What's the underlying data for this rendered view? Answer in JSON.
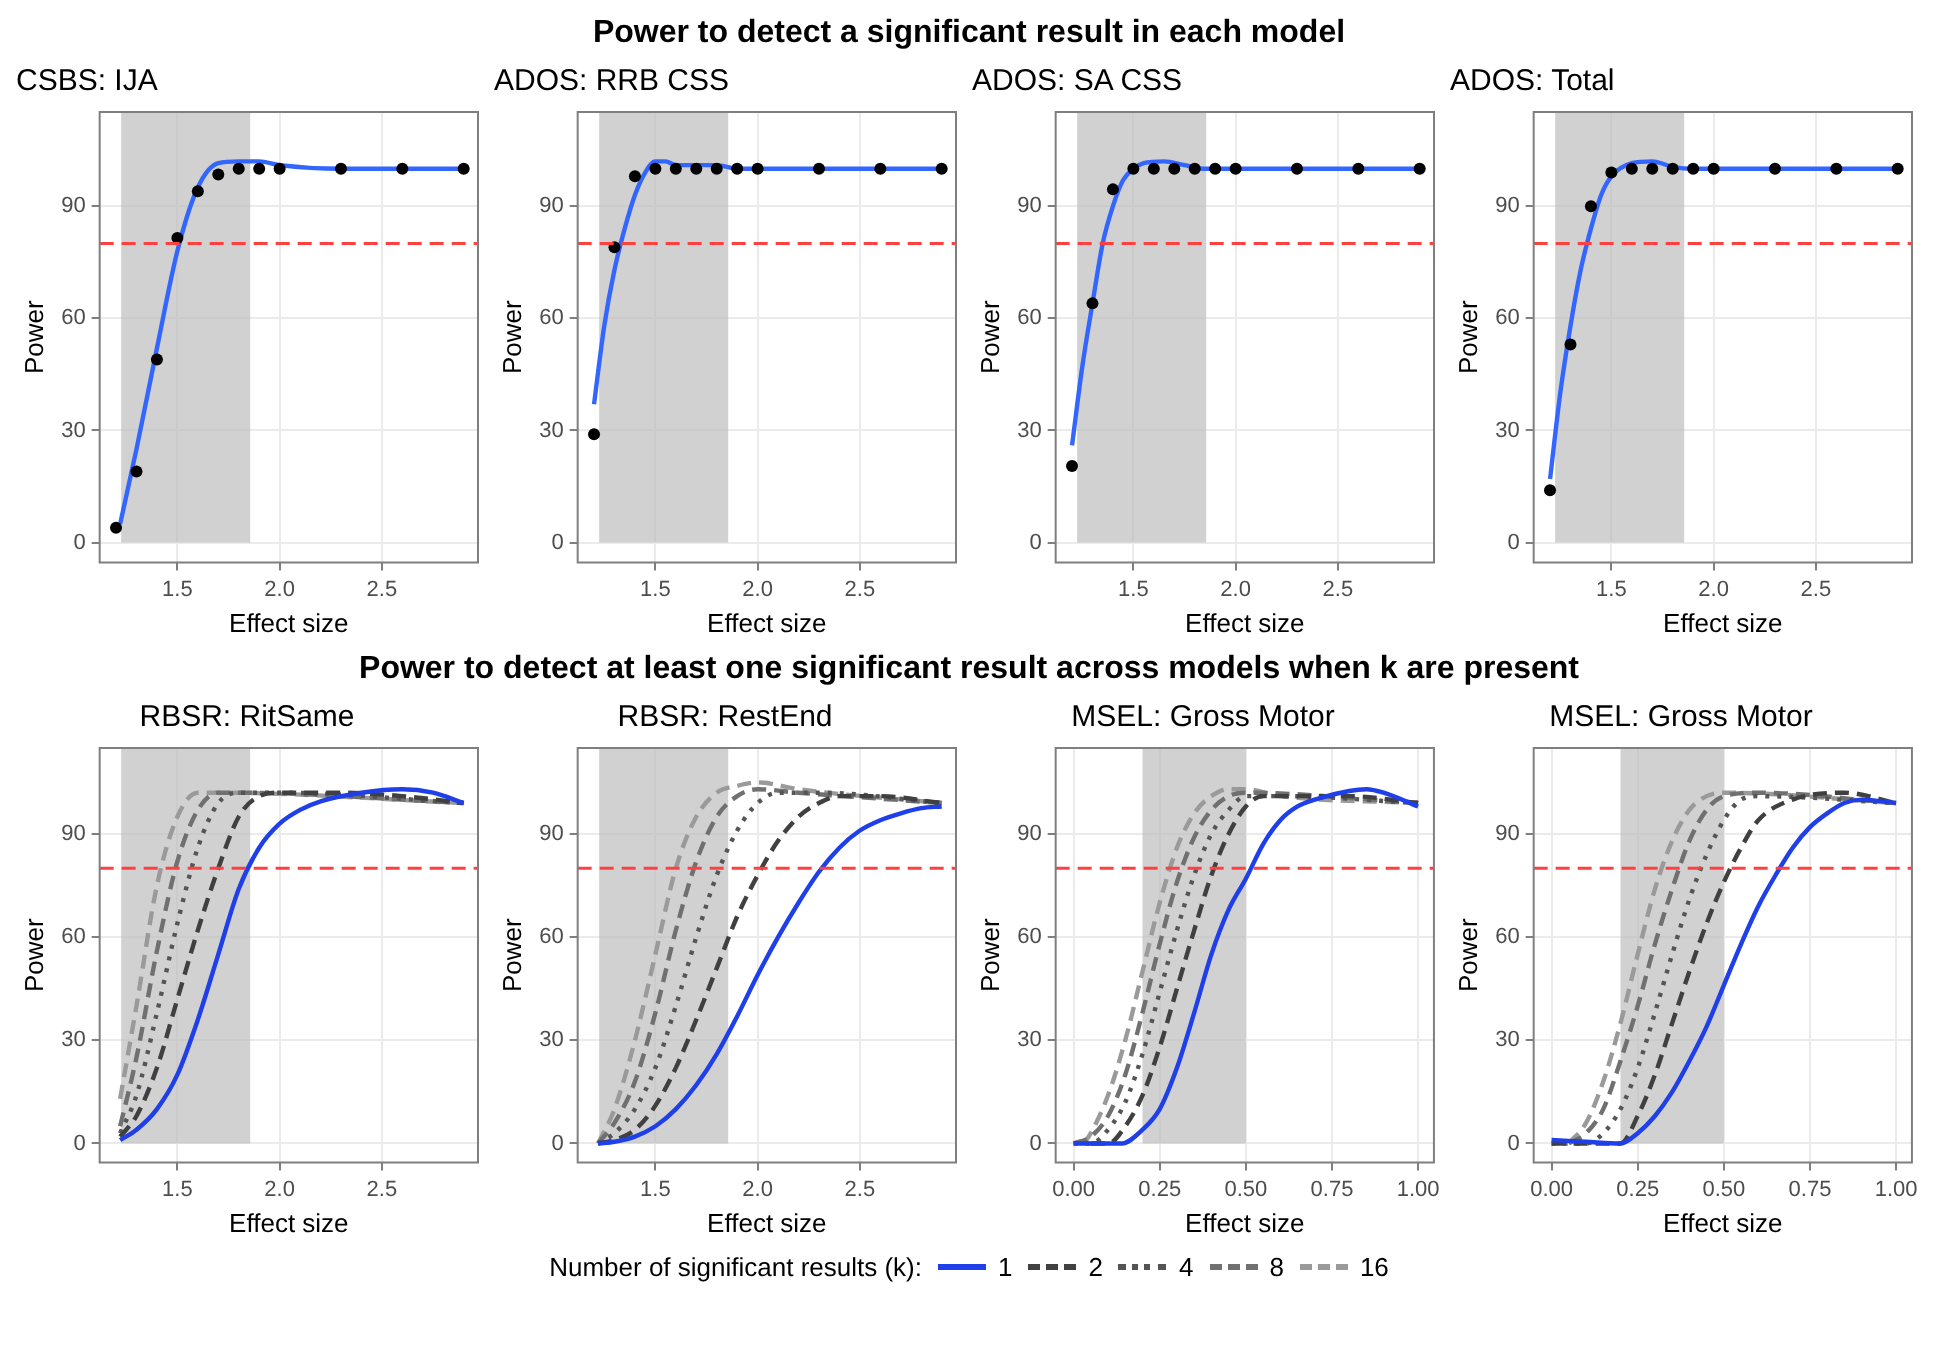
{
  "chart_data": [
    {
      "type": "line",
      "title": "CSBS: IJA",
      "annotations": [
        "Power to detect a significant result in each model"
      ],
      "xlabel": "Effect size",
      "ylabel": "Power",
      "xlim": [
        1.12,
        2.97
      ],
      "xticks": [
        {
          "value": 1.5,
          "label": "1.5"
        },
        {
          "value": 2,
          "label": "2.0"
        },
        {
          "value": 2.5,
          "label": "2.5"
        }
      ],
      "ylim": [
        -5.3,
        115.2
      ],
      "yticks": [
        0,
        30,
        60,
        90
      ],
      "grid": true,
      "bands": [
        {
          "axis": "x",
          "from": 1.225,
          "to": 1.856,
          "color": "#bebebe"
        }
      ],
      "ref_lines": [
        {
          "axis": "y",
          "value": 80,
          "color": "#ff4040",
          "line_style": "dashed"
        }
      ],
      "series": [
        {
          "type": "scatter",
          "marker": "circle",
          "color": "#000000",
          "x": [
            1.2,
            1.3,
            1.4,
            1.5,
            1.6,
            1.7,
            1.8,
            1.9,
            2.0,
            2.3,
            2.6,
            2.9
          ],
          "values": [
            4,
            19,
            49,
            81.5,
            94,
            98.5,
            100,
            100,
            100,
            100,
            100,
            100
          ]
        },
        {
          "type": "line",
          "color": "#3366ff",
          "x": [
            1.22,
            1.3,
            1.4,
            1.5,
            1.6,
            1.7,
            1.8,
            1.9,
            2.0,
            2.3,
            2.6,
            2.9
          ],
          "values": [
            5,
            25,
            52,
            78,
            95,
            101.5,
            102,
            102,
            101,
            100,
            100,
            100
          ]
        }
      ]
    },
    {
      "type": "line",
      "title": "ADOS: RRB CSS",
      "xlabel": "Effect size",
      "ylabel": "Power",
      "xlim": [
        1.12,
        2.97
      ],
      "xticks": [
        {
          "value": 1.5,
          "label": "1.5"
        },
        {
          "value": 2,
          "label": "2.0"
        },
        {
          "value": 2.5,
          "label": "2.5"
        }
      ],
      "ylim": [
        -5.3,
        115.2
      ],
      "yticks": [
        0,
        30,
        60,
        90
      ],
      "grid": true,
      "bands": [
        {
          "axis": "x",
          "from": 1.225,
          "to": 1.856,
          "color": "#bebebe"
        }
      ],
      "ref_lines": [
        {
          "axis": "y",
          "value": 80,
          "color": "#ff4040",
          "line_style": "dashed"
        }
      ],
      "series": [
        {
          "type": "scatter",
          "marker": "circle",
          "color": "#000000",
          "x": [
            1.2,
            1.3,
            1.4,
            1.5,
            1.6,
            1.7,
            1.8,
            1.9,
            2.0,
            2.3,
            2.6,
            2.9
          ],
          "values": [
            29,
            79,
            98,
            100,
            100,
            100,
            100,
            100,
            100,
            100,
            100,
            100
          ]
        },
        {
          "type": "line",
          "color": "#3366ff",
          "x": [
            1.2,
            1.25,
            1.3,
            1.35,
            1.4,
            1.45,
            1.5,
            1.55,
            1.6,
            1.8,
            1.9,
            2.9
          ],
          "values": [
            37,
            58,
            73,
            84,
            93,
            99,
            102,
            102,
            101,
            101,
            100,
            100
          ]
        }
      ]
    },
    {
      "type": "line",
      "title": "ADOS: SA CSS",
      "xlabel": "Effect size",
      "ylabel": "Power",
      "xlim": [
        1.12,
        2.97
      ],
      "xticks": [
        {
          "value": 1.5,
          "label": "1.5"
        },
        {
          "value": 2,
          "label": "2.0"
        },
        {
          "value": 2.5,
          "label": "2.5"
        }
      ],
      "ylim": [
        -5.3,
        115.2
      ],
      "yticks": [
        0,
        30,
        60,
        90
      ],
      "grid": true,
      "bands": [
        {
          "axis": "x",
          "from": 1.225,
          "to": 1.856,
          "color": "#bebebe"
        }
      ],
      "ref_lines": [
        {
          "axis": "y",
          "value": 80,
          "color": "#ff4040",
          "line_style": "dashed"
        }
      ],
      "series": [
        {
          "type": "scatter",
          "marker": "circle",
          "color": "#000000",
          "x": [
            1.2,
            1.3,
            1.4,
            1.5,
            1.6,
            1.7,
            1.8,
            1.9,
            2.0,
            2.3,
            2.6,
            2.9
          ],
          "values": [
            20.5,
            64,
            94.5,
            100,
            100,
            100,
            100,
            100,
            100,
            100,
            100,
            100
          ]
        },
        {
          "type": "line",
          "color": "#3366ff",
          "x": [
            1.2,
            1.25,
            1.3,
            1.35,
            1.4,
            1.45,
            1.5,
            1.55,
            1.65,
            1.75,
            1.85,
            2.9
          ],
          "values": [
            26,
            47,
            64,
            80,
            90,
            97,
            100,
            101.5,
            102,
            101,
            100,
            100
          ]
        }
      ]
    },
    {
      "type": "line",
      "title": "ADOS: Total",
      "xlabel": "Effect size",
      "ylabel": "Power",
      "xlim": [
        1.12,
        2.97
      ],
      "xticks": [
        {
          "value": 1.5,
          "label": "1.5"
        },
        {
          "value": 2,
          "label": "2.0"
        },
        {
          "value": 2.5,
          "label": "2.5"
        }
      ],
      "ylim": [
        -5.3,
        115.2
      ],
      "yticks": [
        0,
        30,
        60,
        90
      ],
      "grid": true,
      "bands": [
        {
          "axis": "x",
          "from": 1.225,
          "to": 1.856,
          "color": "#bebebe"
        }
      ],
      "ref_lines": [
        {
          "axis": "y",
          "value": 80,
          "color": "#ff4040",
          "line_style": "dashed"
        }
      ],
      "series": [
        {
          "type": "scatter",
          "marker": "circle",
          "color": "#000000",
          "x": [
            1.2,
            1.3,
            1.4,
            1.5,
            1.6,
            1.7,
            1.8,
            1.9,
            2.0,
            2.3,
            2.6,
            2.9
          ],
          "values": [
            14,
            53,
            90,
            99,
            100,
            100,
            100,
            100,
            100,
            100,
            100,
            100
          ]
        },
        {
          "type": "line",
          "color": "#3366ff",
          "x": [
            1.2,
            1.25,
            1.3,
            1.35,
            1.4,
            1.45,
            1.5,
            1.6,
            1.7,
            1.8,
            1.9,
            2.9
          ],
          "values": [
            17,
            40,
            58,
            73,
            84,
            93,
            98,
            101.5,
            102,
            100.5,
            100,
            100
          ]
        }
      ]
    },
    {
      "type": "line",
      "title": "RBSR: RitSame",
      "annotations": [
        "Power to detect at least one significant result across models when k are present"
      ],
      "legend": "bottom",
      "legend_title": "Number of significant results (k):",
      "xlabel": "Effect size",
      "ylabel": "Power",
      "xlim": [
        1.12,
        2.97
      ],
      "xticks": [
        {
          "value": 1.5,
          "label": "1.5"
        },
        {
          "value": 2,
          "label": "2.0"
        },
        {
          "value": 2.5,
          "label": "2.5"
        }
      ],
      "ylim": [
        -5.5,
        115
      ],
      "yticks": [
        0,
        30,
        60,
        90
      ],
      "grid": true,
      "bands": [
        {
          "axis": "x",
          "from": 1.225,
          "to": 1.856,
          "color": "#bebebe"
        }
      ],
      "ref_lines": [
        {
          "axis": "y",
          "value": 80,
          "color": "#ff4040",
          "line_style": "dashed"
        }
      ],
      "series": [
        {
          "name": "1",
          "type": "line",
          "line_style": "solid",
          "color": "#1f3fe8",
          "x": [
            1.22,
            1.3,
            1.4,
            1.5,
            1.6,
            1.7,
            1.8,
            1.9,
            2.0,
            2.1,
            2.2,
            2.4,
            2.6,
            2.75,
            2.9
          ],
          "values": [
            1,
            4,
            10,
            20,
            36,
            55,
            74,
            86,
            93,
            97,
            99.5,
            102,
            103,
            102,
            99
          ]
        },
        {
          "name": "2",
          "type": "line",
          "line_style": "dashed",
          "color": "#404040",
          "x": [
            1.22,
            1.3,
            1.4,
            1.5,
            1.6,
            1.7,
            1.8,
            1.9,
            2.0,
            2.3,
            2.6,
            2.9
          ],
          "values": [
            2,
            8,
            22,
            42,
            62,
            80,
            95,
            101,
            102,
            102,
            101,
            99
          ]
        },
        {
          "name": "4",
          "type": "line",
          "line_style": "dotted",
          "color": "#555555",
          "x": [
            1.22,
            1.3,
            1.4,
            1.5,
            1.6,
            1.7,
            1.8,
            2.0,
            2.9
          ],
          "values": [
            3,
            14,
            38,
            64,
            86,
            99,
            102,
            102,
            99
          ]
        },
        {
          "name": "8",
          "type": "line",
          "line_style": "dashed",
          "color": "#707070",
          "x": [
            1.22,
            1.3,
            1.4,
            1.5,
            1.6,
            1.7,
            1.8,
            2.9
          ],
          "values": [
            5,
            25,
            56,
            82,
            97,
            102,
            102,
            99
          ]
        },
        {
          "name": "16",
          "type": "line",
          "line_style": "dashed",
          "color": "#9a9a9a",
          "x": [
            1.22,
            1.3,
            1.4,
            1.5,
            1.6,
            1.7,
            2.9
          ],
          "values": [
            13,
            40,
            75,
            95,
            102,
            102,
            99
          ]
        }
      ]
    },
    {
      "type": "line",
      "title": "RBSR: RestEnd",
      "xlabel": "Effect size",
      "ylabel": "Power",
      "xlim": [
        1.12,
        2.97
      ],
      "xticks": [
        {
          "value": 1.5,
          "label": "1.5"
        },
        {
          "value": 2,
          "label": "2.0"
        },
        {
          "value": 2.5,
          "label": "2.5"
        }
      ],
      "ylim": [
        -5.5,
        115
      ],
      "yticks": [
        0,
        30,
        60,
        90
      ],
      "grid": true,
      "bands": [
        {
          "axis": "x",
          "from": 1.225,
          "to": 1.856,
          "color": "#bebebe"
        }
      ],
      "ref_lines": [
        {
          "axis": "y",
          "value": 80,
          "color": "#ff4040",
          "line_style": "dashed"
        }
      ],
      "series": [
        {
          "name": "1",
          "type": "line",
          "line_style": "solid",
          "color": "#1f3fe8",
          "x": [
            1.22,
            1.3,
            1.4,
            1.5,
            1.6,
            1.7,
            1.8,
            1.9,
            2.0,
            2.1,
            2.2,
            2.3,
            2.4,
            2.5,
            2.6,
            2.7,
            2.8,
            2.9
          ],
          "values": [
            0,
            0.5,
            2,
            5,
            10,
            17,
            26,
            37,
            49,
            60,
            70,
            79,
            86,
            91,
            94,
            96,
            97.5,
            98
          ]
        },
        {
          "name": "2",
          "type": "line",
          "line_style": "dashed",
          "color": "#404040",
          "x": [
            1.22,
            1.3,
            1.4,
            1.5,
            1.6,
            1.7,
            1.8,
            1.9,
            2.0,
            2.1,
            2.2,
            2.3,
            2.4,
            2.6,
            2.9
          ],
          "values": [
            0,
            1,
            4,
            11,
            22,
            36,
            51,
            66,
            78,
            88,
            95,
            99,
            101,
            101,
            99
          ]
        },
        {
          "name": "4",
          "type": "line",
          "line_style": "dotted",
          "color": "#555555",
          "x": [
            1.22,
            1.3,
            1.4,
            1.5,
            1.6,
            1.7,
            1.8,
            1.9,
            2.0,
            2.1,
            2.3,
            2.9
          ],
          "values": [
            0,
            3,
            10,
            22,
            40,
            60,
            78,
            91,
            99,
            102,
            102,
            99
          ]
        },
        {
          "name": "8",
          "type": "line",
          "line_style": "dashed",
          "color": "#707070",
          "x": [
            1.22,
            1.3,
            1.4,
            1.5,
            1.6,
            1.7,
            1.8,
            1.9,
            2.0,
            2.2,
            2.9
          ],
          "values": [
            0,
            6,
            18,
            38,
            62,
            82,
            95,
            101,
            103,
            102,
            99
          ]
        },
        {
          "name": "16",
          "type": "line",
          "line_style": "dashed",
          "color": "#9a9a9a",
          "x": [
            1.22,
            1.3,
            1.4,
            1.5,
            1.6,
            1.7,
            1.8,
            1.9,
            2.0,
            2.2,
            2.9
          ],
          "values": [
            0,
            10,
            30,
            55,
            80,
            95,
            102,
            104,
            105,
            103,
            99
          ]
        }
      ]
    },
    {
      "type": "line",
      "title": "MSEL: Gross Motor",
      "xlabel": "Effect size",
      "ylabel": "Power",
      "xlim": [
        -0.052,
        1.046
      ],
      "xticks": [
        {
          "value": 0,
          "label": "0.00"
        },
        {
          "value": 0.25,
          "label": "0.25"
        },
        {
          "value": 0.5,
          "label": "0.50"
        },
        {
          "value": 0.75,
          "label": "0.75"
        },
        {
          "value": 1,
          "label": "1.00"
        }
      ],
      "ylim": [
        -5.5,
        115
      ],
      "yticks": [
        0,
        30,
        60,
        90
      ],
      "grid": true,
      "bands": [
        {
          "axis": "x",
          "from": 0.2,
          "to": 0.5,
          "color": "#bebebe"
        }
      ],
      "ref_lines": [
        {
          "axis": "y",
          "value": 80,
          "color": "#ff4040",
          "line_style": "dashed"
        }
      ],
      "series": [
        {
          "name": "1",
          "type": "line",
          "line_style": "solid",
          "color": "#1f3fe8",
          "x": [
            0,
            0.05,
            0.1,
            0.14,
            0.2,
            0.25,
            0.3,
            0.35,
            0.4,
            0.45,
            0.5,
            0.55,
            0.6,
            0.65,
            0.7,
            0.8,
            0.85,
            0.9,
            1.0
          ],
          "values": [
            0,
            0,
            0,
            0,
            4,
            10,
            22,
            38,
            55,
            68,
            77,
            87,
            94,
            98,
            100,
            102.5,
            103,
            102,
            98
          ]
        },
        {
          "name": "2",
          "type": "line",
          "line_style": "dashed",
          "color": "#404040",
          "x": [
            0.05,
            0.1,
            0.15,
            0.2,
            0.25,
            0.3,
            0.35,
            0.4,
            0.45,
            0.5,
            0.55,
            0.6,
            0.8,
            1.0
          ],
          "values": [
            0,
            0,
            5,
            14,
            28,
            45,
            62,
            78,
            90,
            98,
            101,
            101,
            101,
            99
          ]
        },
        {
          "name": "4",
          "type": "line",
          "line_style": "dotted",
          "color": "#555555",
          "x": [
            0,
            0.05,
            0.1,
            0.15,
            0.2,
            0.25,
            0.3,
            0.35,
            0.4,
            0.45,
            0.5,
            0.6,
            1.0
          ],
          "values": [
            0,
            0,
            4,
            12,
            26,
            44,
            62,
            78,
            90,
            97,
            101,
            101,
            99
          ]
        },
        {
          "name": "8",
          "type": "line",
          "line_style": "dashed",
          "color": "#707070",
          "x": [
            0,
            0.05,
            0.1,
            0.15,
            0.2,
            0.25,
            0.3,
            0.35,
            0.4,
            0.45,
            0.5,
            1.0
          ],
          "values": [
            0,
            2,
            8,
            20,
            38,
            58,
            76,
            89,
            97,
            101,
            102,
            99
          ]
        },
        {
          "name": "16",
          "type": "line",
          "line_style": "dashed",
          "color": "#9a9a9a",
          "x": [
            0.03,
            0.05,
            0.1,
            0.15,
            0.2,
            0.25,
            0.3,
            0.35,
            0.4,
            0.45,
            0.5,
            0.6,
            1.0
          ],
          "values": [
            0,
            3,
            14,
            30,
            50,
            70,
            86,
            96,
            101,
            103,
            103,
            101,
            99
          ]
        }
      ]
    },
    {
      "type": "line",
      "title": "MSEL: Gross Motor",
      "xlabel": "Effect size",
      "ylabel": "Power",
      "xlim": [
        -0.052,
        1.046
      ],
      "xticks": [
        {
          "value": 0,
          "label": "0.00"
        },
        {
          "value": 0.25,
          "label": "0.25"
        },
        {
          "value": 0.5,
          "label": "0.50"
        },
        {
          "value": 0.75,
          "label": "0.75"
        },
        {
          "value": 1,
          "label": "1.00"
        }
      ],
      "ylim": [
        -5.5,
        115
      ],
      "yticks": [
        0,
        30,
        60,
        90
      ],
      "grid": true,
      "bands": [
        {
          "axis": "x",
          "from": 0.2,
          "to": 0.5,
          "color": "#bebebe"
        }
      ],
      "ref_lines": [
        {
          "axis": "y",
          "value": 80,
          "color": "#ff4040",
          "line_style": "dashed"
        }
      ],
      "series": [
        {
          "name": "1",
          "type": "line",
          "line_style": "solid",
          "color": "#1f3fe8",
          "x": [
            0,
            0.1,
            0.2,
            0.25,
            0.3,
            0.35,
            0.4,
            0.45,
            0.5,
            0.55,
            0.6,
            0.65,
            0.7,
            0.75,
            0.8,
            0.85,
            0.9,
            1.0
          ],
          "values": [
            1,
            0.5,
            0,
            3,
            8,
            15,
            24,
            34,
            46,
            58,
            69,
            78,
            86,
            92,
            96,
            99,
            100,
            99
          ]
        },
        {
          "name": "2",
          "type": "line",
          "line_style": "dashed",
          "color": "#404040",
          "x": [
            0,
            0.15,
            0.2,
            0.25,
            0.3,
            0.35,
            0.4,
            0.45,
            0.5,
            0.55,
            0.6,
            0.7,
            0.85,
            1.0
          ],
          "values": [
            0,
            0,
            0,
            8,
            20,
            35,
            50,
            64,
            76,
            86,
            94,
            100,
            102,
            99
          ]
        },
        {
          "name": "4",
          "type": "line",
          "line_style": "dotted",
          "color": "#555555",
          "x": [
            0,
            0.1,
            0.15,
            0.2,
            0.25,
            0.3,
            0.35,
            0.4,
            0.45,
            0.5,
            0.55,
            0.6,
            1.0
          ],
          "values": [
            0,
            0,
            3,
            10,
            22,
            38,
            55,
            71,
            84,
            94,
            100,
            101,
            99
          ]
        },
        {
          "name": "8",
          "type": "line",
          "line_style": "dashed",
          "color": "#707070",
          "x": [
            0.05,
            0.1,
            0.15,
            0.2,
            0.25,
            0.3,
            0.35,
            0.4,
            0.45,
            0.5,
            0.6,
            1.0
          ],
          "values": [
            0,
            3,
            10,
            24,
            40,
            58,
            74,
            88,
            97,
            101,
            102,
            99
          ]
        },
        {
          "name": "16",
          "type": "line",
          "line_style": "dashed",
          "color": "#9a9a9a",
          "x": [
            0.05,
            0.1,
            0.15,
            0.2,
            0.25,
            0.3,
            0.35,
            0.4,
            0.45,
            0.5,
            1.0
          ],
          "values": [
            0,
            6,
            18,
            35,
            55,
            74,
            88,
            97,
            101,
            102,
            99
          ]
        }
      ]
    }
  ]
}
